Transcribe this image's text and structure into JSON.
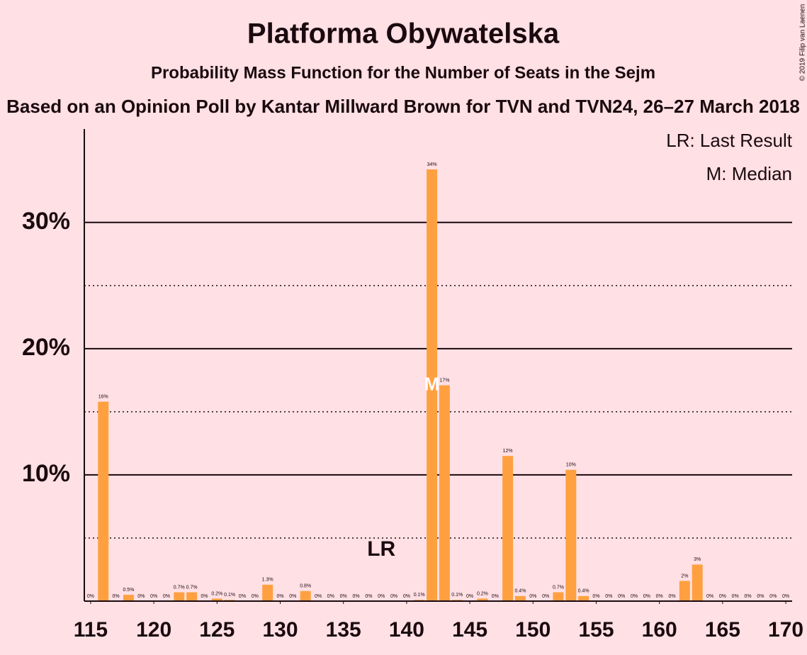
{
  "chart_data": {
    "type": "bar",
    "title": "Platforma Obywatelska",
    "subtitle": "Probability Mass Function for the Number of Seats in the Sejm",
    "source_line": "Based on an Opinion Poll by Kantar Millward Brown for TVN and TVN24, 26–27 March 2018",
    "copyright": "© 2019 Filip van Laenen",
    "legend_entries": [
      "LR: Last Result",
      "M: Median"
    ],
    "x": [
      115,
      116,
      117,
      118,
      119,
      120,
      121,
      122,
      123,
      124,
      125,
      126,
      127,
      128,
      129,
      130,
      131,
      132,
      133,
      134,
      135,
      136,
      137,
      138,
      139,
      140,
      141,
      142,
      143,
      144,
      145,
      146,
      147,
      148,
      149,
      150,
      151,
      152,
      153,
      154,
      155,
      156,
      157,
      158,
      159,
      160,
      161,
      162,
      163,
      164,
      165,
      166,
      167,
      168,
      169,
      170
    ],
    "values": [
      0,
      15.8,
      0,
      0.5,
      0,
      0,
      0,
      0.7,
      0.7,
      0,
      0.2,
      0.1,
      0,
      0,
      1.3,
      0,
      0,
      0.8,
      0,
      0,
      0,
      0,
      0,
      0,
      0,
      0,
      0.1,
      34.2,
      17.1,
      0.1,
      0,
      0.2,
      0,
      11.5,
      0.4,
      0,
      0,
      0.7,
      10.4,
      0.4,
      0,
      0,
      0,
      0,
      0,
      0,
      0,
      1.6,
      2.9,
      0,
      0,
      0,
      0,
      0,
      0,
      0
    ],
    "value_labels": [
      "0%",
      "16%",
      "0%",
      "0.5%",
      "0%",
      "0%",
      "0%",
      "0.7%",
      "0.7%",
      "0%",
      "0.2%",
      "0.1%",
      "0%",
      "0%",
      "1.3%",
      "0%",
      "0%",
      "0.8%",
      "0%",
      "0%",
      "0%",
      "0%",
      "0%",
      "0%",
      "0%",
      "0%",
      "0.1%",
      "34%",
      "17%",
      "0.1%",
      "0%",
      "0.2%",
      "0%",
      "12%",
      "0.4%",
      "0%",
      "0%",
      "0.7%",
      "10%",
      "0.4%",
      "0%",
      "0%",
      "0%",
      "0%",
      "0%",
      "0%",
      "0%",
      "2%",
      "3%",
      "0%",
      "0%",
      "0%",
      "0%",
      "0%",
      "0%",
      "0%"
    ],
    "color": "#ffa040",
    "xlim": [
      114.5,
      170.5
    ],
    "xticks": [
      115,
      120,
      125,
      130,
      135,
      140,
      145,
      150,
      155,
      160,
      165,
      170
    ],
    "ylim": [
      0,
      37.4
    ],
    "yticks": [
      {
        "value": 10,
        "label": "10%"
      },
      {
        "value": 20,
        "label": "20%"
      },
      {
        "value": 30,
        "label": "30%"
      }
    ],
    "minor_yticks": [
      5,
      15,
      25
    ],
    "grid": true,
    "last_result": {
      "x": 138,
      "label": "LR"
    },
    "median": {
      "x": 142,
      "label": "M"
    }
  }
}
